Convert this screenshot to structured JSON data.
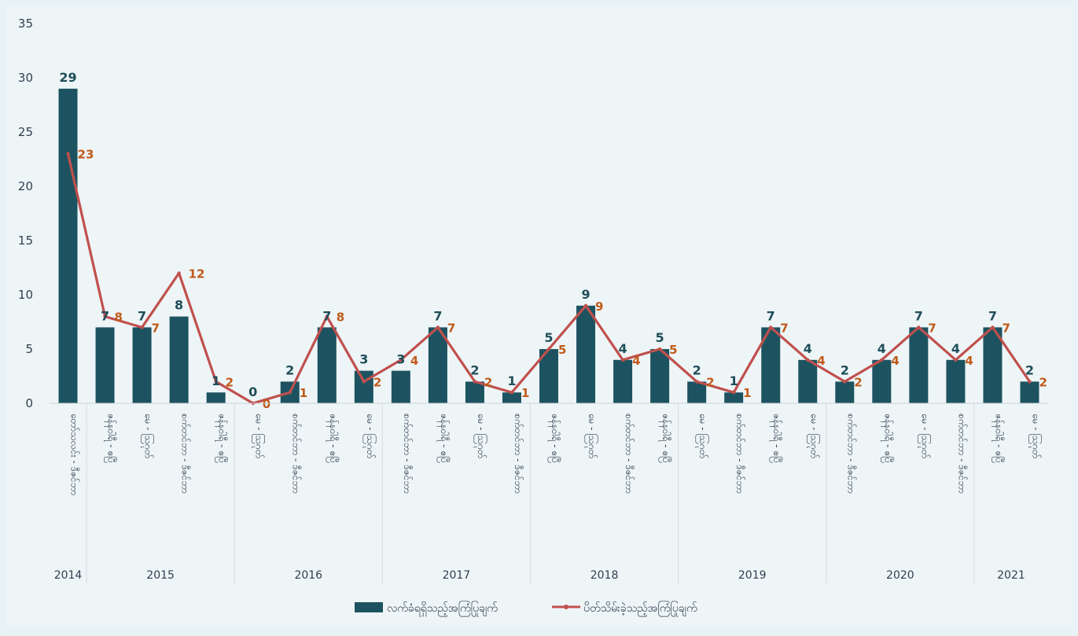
{
  "chart_data": {
    "type": "bar",
    "ylim": [
      0,
      35
    ],
    "y_ticks": [
      "0",
      "5",
      "10",
      "15",
      "20",
      "25",
      "30",
      "35"
    ],
    "grid": false,
    "legend_position": "bottom",
    "categories": [
      "တော်သလင်း - ဒီဇင်ဘာ",
      "ဇန်နဝါရီ - ဧပြီ",
      "မေ - ဩဂုတ်",
      "စက်တင်ဘာ - ဒီဇင်ဘာ",
      "ဇန်နဝါရီ - ဧပြီ",
      "မေ - ဩဂုတ်",
      "စက်တင်ဘာ - ဒီဇင်ဘာ",
      "ဇန်နဝါရီ - ဧပြီ",
      "မေ - ဩဂုတ်",
      "စက်တင်ဘာ - ဒီဇင်ဘာ",
      "ဇန်နဝါရီ - ဧပြီ",
      "မေ - ဩဂုတ်",
      "စက်တင်ဘာ - ဒီဇင်ဘာ",
      "ဇန်နဝါရီ - ဧပြီ",
      "မေ - ဩဂုတ်",
      "စက်တင်ဘာ - ဒီဇင်ဘာ",
      "ဇန်နဝါရီ - ဧပြီ",
      "မေ - ဩဂုတ်",
      "စက်တင်ဘာ - ဒီဇင်ဘာ",
      "ဇန်နဝါရီ - ဧပြီ",
      "မေ - ဩဂုတ်",
      "စက်တင်ဘာ - ဒီဇင်ဘာ",
      "ဇန်နဝါရီ - ဧပြီ",
      "မေ - ဩဂုတ်",
      "စက်တင်ဘာ - ဒီဇင်ဘာ",
      "ဇန်နဝါရီ - ဧပြီ",
      "မေ - ဩဂုတ်"
    ],
    "years": [
      {
        "label": "2014",
        "start": 0,
        "end": 0
      },
      {
        "label": "2015",
        "start": 1,
        "end": 4
      },
      {
        "label": "2016",
        "start": 5,
        "end": 8
      },
      {
        "label": "2017",
        "start": 9,
        "end": 12
      },
      {
        "label": "2018",
        "start": 13,
        "end": 16
      },
      {
        "label": "2019",
        "start": 17,
        "end": 20
      },
      {
        "label": "2020",
        "start": 21,
        "end": 24
      },
      {
        "label": "2021",
        "start": 25,
        "end": 26
      }
    ],
    "series": [
      {
        "name": "လက်ခံရရှိသည့်အကြံပြုချက်",
        "type": "bar",
        "color": "#1d5360",
        "values": [
          29,
          7,
          7,
          8,
          1,
          0,
          2,
          7,
          3,
          3,
          7,
          2,
          1,
          5,
          9,
          4,
          5,
          2,
          1,
          7,
          4,
          2,
          4,
          7,
          4,
          7,
          2
        ]
      },
      {
        "name": "ပိတ်သိမ်းခဲ့သည့်အကြံပြုချက်",
        "type": "line",
        "color": "#c0504d",
        "values": [
          23,
          8,
          7,
          12,
          2,
          0,
          1,
          8,
          2,
          4,
          7,
          2,
          1,
          5,
          9,
          4,
          5,
          2,
          1,
          7,
          4,
          2,
          4,
          7,
          4,
          7,
          2
        ]
      }
    ]
  }
}
